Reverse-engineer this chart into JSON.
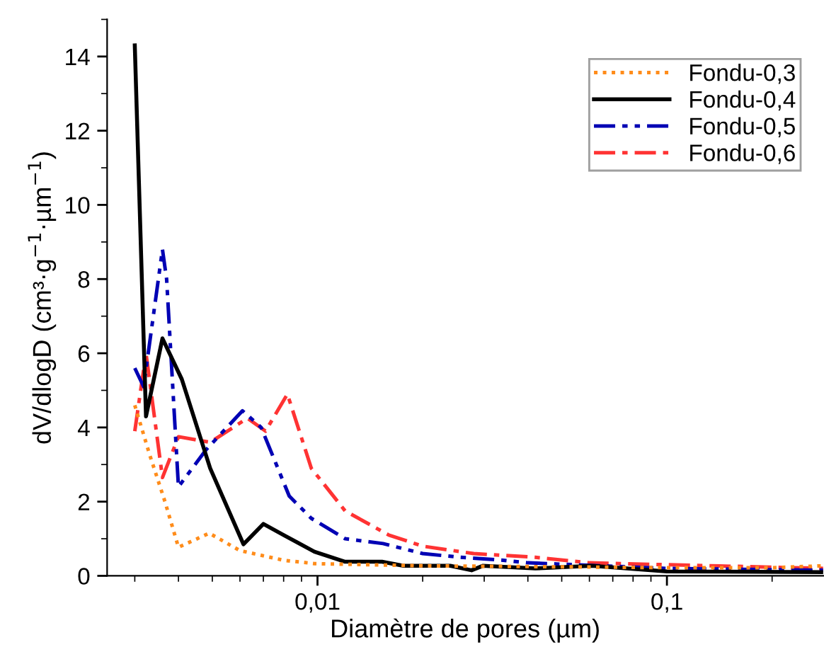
{
  "chart_data": {
    "type": "line",
    "xlabel": "Diamètre de pores (µm)",
    "ylabel": "dV/dlogD (cm³·g$^{−1}$·µm$^{−1}$)",
    "log": "x",
    "xlim": [
      0.0025,
      0.28
    ],
    "xticks": [
      {
        "value": 0.01,
        "label": "0,01"
      },
      {
        "value": 0.1,
        "label": "0,1"
      }
    ],
    "ylim": [
      0,
      15
    ],
    "yticks": [
      0,
      2,
      4,
      6,
      8,
      10,
      12,
      14
    ],
    "grid": false,
    "legend": "top right",
    "marker": "none",
    "series": [
      {
        "name": "Fondu-0,3",
        "color": "#ff8c1a",
        "line_style": "dotted",
        "x": [
          0.003,
          0.0033,
          0.00366,
          0.004,
          0.0049,
          0.006,
          0.008,
          0.0098,
          0.014,
          0.02,
          0.04,
          0.1,
          0.2,
          0.28
        ],
        "values": [
          4.6,
          3.3,
          2.0,
          0.77,
          1.15,
          0.68,
          0.42,
          0.33,
          0.3,
          0.27,
          0.25,
          0.22,
          0.22,
          0.27
        ]
      },
      {
        "name": "Fondu-0,4",
        "color": "#000000",
        "line_style": "solid",
        "x": [
          0.003,
          0.00323,
          0.0036,
          0.00409,
          0.00493,
          0.00614,
          0.007,
          0.008,
          0.0098,
          0.012,
          0.0153,
          0.0176,
          0.024,
          0.0276,
          0.0297,
          0.042,
          0.061,
          0.1,
          0.28
        ],
        "values": [
          14.3,
          4.3,
          6.4,
          5.3,
          2.9,
          0.85,
          1.4,
          1.1,
          0.65,
          0.38,
          0.38,
          0.27,
          0.27,
          0.15,
          0.27,
          0.2,
          0.27,
          0.12,
          0.1
        ]
      },
      {
        "name": "Fondu-0,5",
        "color": "#0000b4",
        "line_style": "dashdotdot",
        "x": [
          0.003,
          0.00318,
          0.0036,
          0.0037,
          0.004,
          0.0048,
          0.0061,
          0.0069,
          0.0083,
          0.0096,
          0.012,
          0.0154,
          0.02,
          0.0256,
          0.034,
          0.04,
          0.1,
          0.28
        ],
        "values": [
          5.6,
          5.1,
          8.8,
          8.0,
          2.4,
          3.4,
          4.45,
          4.0,
          2.15,
          1.55,
          1.0,
          0.87,
          0.6,
          0.5,
          0.42,
          0.35,
          0.2,
          0.15
        ]
      },
      {
        "name": "Fondu-0,6",
        "color": "#ff3333",
        "line_style": "dashdot",
        "x": [
          0.003,
          0.00323,
          0.0036,
          0.004,
          0.00493,
          0.0063,
          0.0071,
          0.0082,
          0.0096,
          0.012,
          0.016,
          0.02,
          0.028,
          0.042,
          0.06,
          0.1,
          0.28
        ],
        "values": [
          3.9,
          6.0,
          2.65,
          3.75,
          3.6,
          4.25,
          3.9,
          4.9,
          2.9,
          1.75,
          1.1,
          0.8,
          0.6,
          0.5,
          0.35,
          0.3,
          0.2
        ]
      }
    ]
  }
}
